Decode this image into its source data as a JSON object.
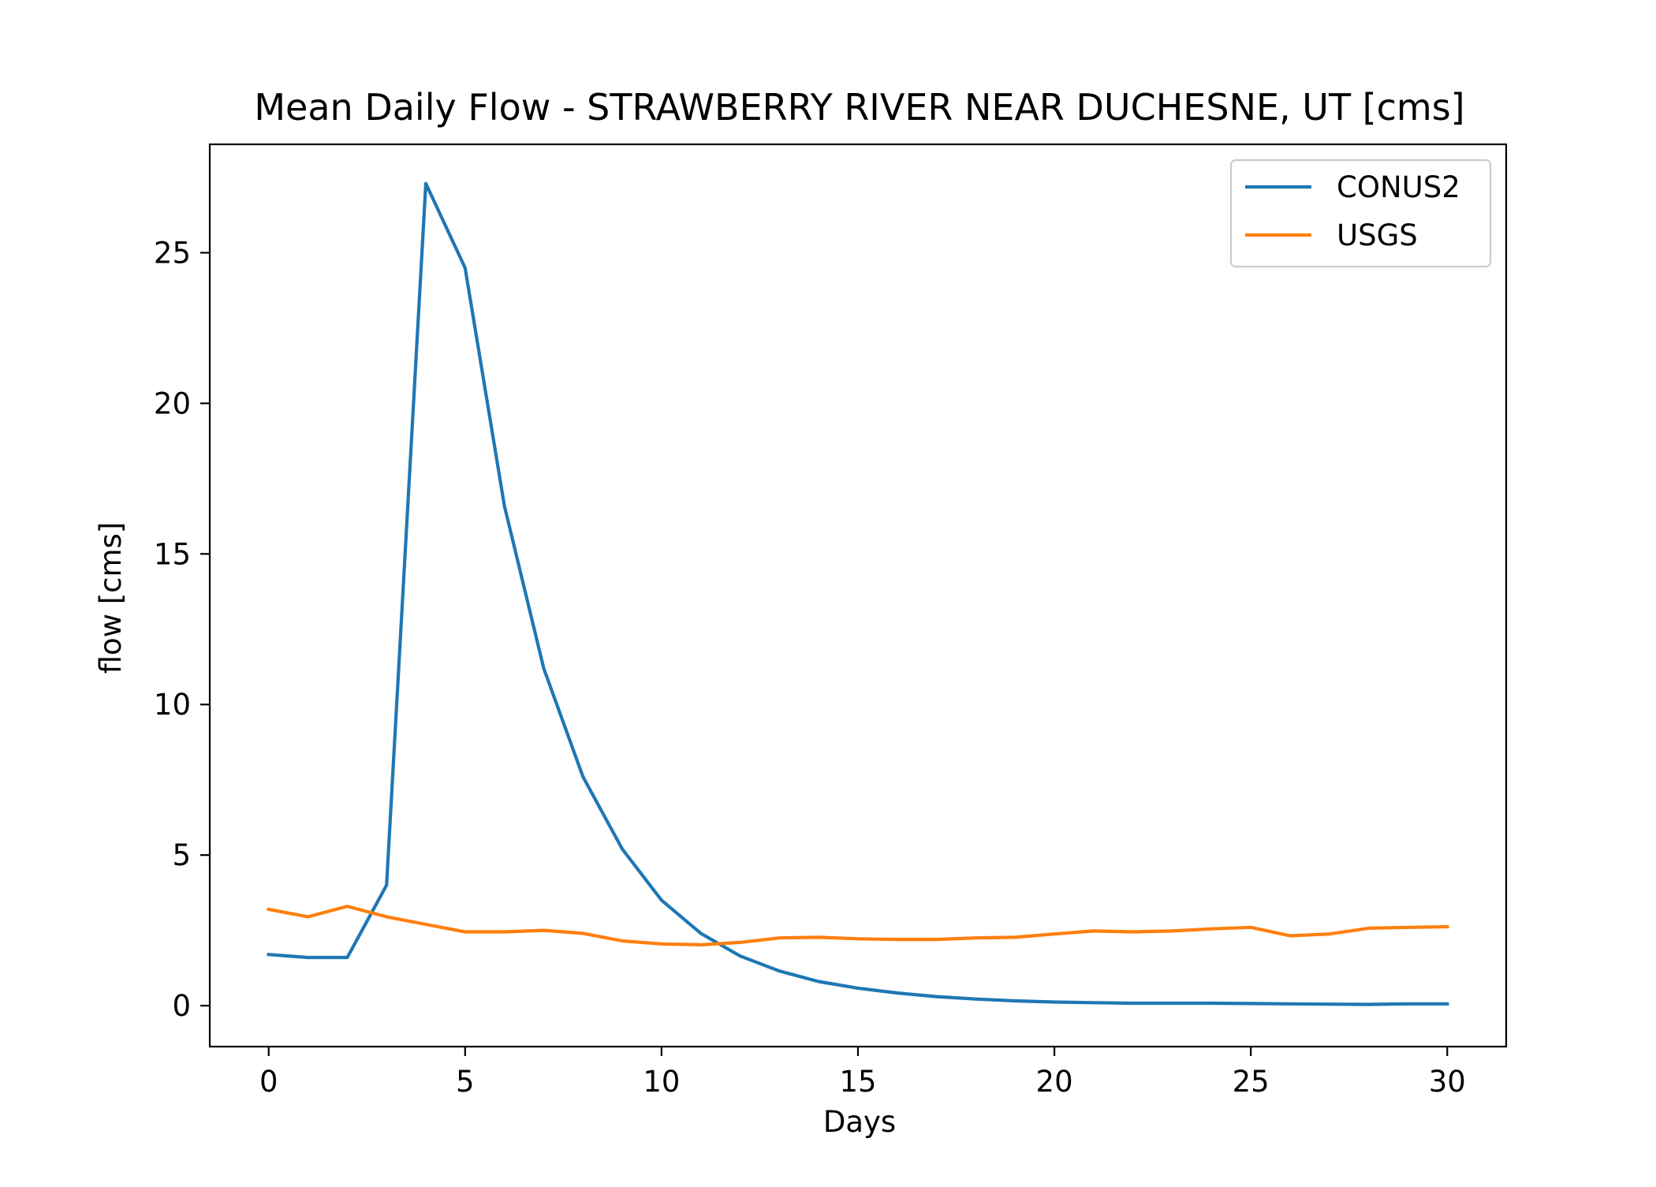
{
  "chart_data": {
    "type": "line",
    "title": "Mean Daily Flow - STRAWBERRY RIVER NEAR DUCHESNE, UT [cms]",
    "xlabel": "Days",
    "ylabel": "flow [cms]",
    "xlim": [
      -1.5,
      31.5
    ],
    "ylim": [
      -1.36,
      28.6
    ],
    "xticks": [
      0,
      5,
      10,
      15,
      20,
      25,
      30
    ],
    "yticks": [
      0,
      5,
      10,
      15,
      20,
      25
    ],
    "grid": false,
    "legend_position": "top-right",
    "x": [
      0,
      1,
      2,
      3,
      4,
      5,
      6,
      7,
      8,
      9,
      10,
      11,
      12,
      13,
      14,
      15,
      16,
      17,
      18,
      19,
      20,
      21,
      22,
      23,
      24,
      25,
      26,
      27,
      28,
      29,
      30
    ],
    "series": [
      {
        "name": "CONUS2",
        "color": "#1f77b4",
        "values": [
          1.7,
          1.6,
          1.6,
          4.0,
          27.3,
          24.5,
          16.6,
          11.2,
          7.6,
          5.2,
          3.5,
          2.4,
          1.65,
          1.15,
          0.8,
          0.58,
          0.42,
          0.3,
          0.22,
          0.16,
          0.12,
          0.1,
          0.08,
          0.08,
          0.08,
          0.07,
          0.06,
          0.05,
          0.04,
          0.06,
          0.06
        ]
      },
      {
        "name": "USGS",
        "color": "#ff7f0e",
        "values": [
          3.2,
          2.95,
          3.3,
          2.95,
          2.7,
          2.45,
          2.45,
          2.5,
          2.4,
          2.15,
          2.05,
          2.02,
          2.1,
          2.25,
          2.27,
          2.22,
          2.2,
          2.2,
          2.25,
          2.27,
          2.38,
          2.48,
          2.45,
          2.48,
          2.55,
          2.6,
          2.32,
          2.38,
          2.57,
          2.6,
          2.62
        ]
      }
    ]
  }
}
